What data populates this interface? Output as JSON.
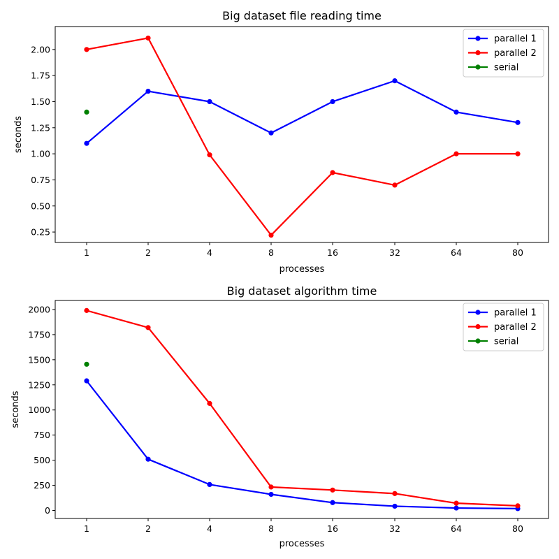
{
  "chart_data": [
    {
      "type": "line",
      "title": "Big dataset file reading time",
      "xlabel": "processes",
      "ylabel": "seconds",
      "categories": [
        "1",
        "2",
        "4",
        "8",
        "16",
        "32",
        "64",
        "80"
      ],
      "ylim": [
        0.15,
        2.22
      ],
      "yticks": [
        0.25,
        0.5,
        0.75,
        1.0,
        1.25,
        1.5,
        1.75,
        2.0
      ],
      "ytick_labels": [
        "0.25",
        "0.50",
        "0.75",
        "1.00",
        "1.25",
        "1.50",
        "1.75",
        "2.00"
      ],
      "grid": false,
      "legend_position": "top-right",
      "series": [
        {
          "name": "parallel 1",
          "color": "#0000ff",
          "values": [
            1.1,
            1.6,
            1.5,
            1.2,
            1.5,
            1.7,
            1.4,
            1.3
          ]
        },
        {
          "name": "parallel 2",
          "color": "#ff0000",
          "values": [
            2.0,
            2.11,
            0.99,
            0.22,
            0.82,
            0.7,
            1.0,
            1.0
          ]
        },
        {
          "name": "serial",
          "color": "#008000",
          "values": [
            1.4,
            null,
            null,
            null,
            null,
            null,
            null,
            null
          ]
        }
      ]
    },
    {
      "type": "line",
      "title": "Big dataset algorithm time",
      "xlabel": "processes",
      "ylabel": "seconds",
      "categories": [
        "1",
        "2",
        "4",
        "8",
        "16",
        "32",
        "64",
        "80"
      ],
      "ylim": [
        -80,
        2090
      ],
      "yticks": [
        0,
        250,
        500,
        750,
        1000,
        1250,
        1500,
        1750,
        2000
      ],
      "ytick_labels": [
        "0",
        "250",
        "500",
        "750",
        "1000",
        "1250",
        "1500",
        "1750",
        "2000"
      ],
      "grid": false,
      "legend_position": "top-right",
      "series": [
        {
          "name": "parallel 1",
          "color": "#0000ff",
          "values": [
            1290,
            510,
            258,
            160,
            78,
            42,
            24,
            18
          ]
        },
        {
          "name": "parallel 2",
          "color": "#ff0000",
          "values": [
            1990,
            1820,
            1065,
            233,
            203,
            168,
            72,
            46
          ]
        },
        {
          "name": "serial",
          "color": "#008000",
          "values": [
            1455,
            null,
            null,
            null,
            null,
            null,
            null,
            null
          ]
        }
      ]
    }
  ]
}
